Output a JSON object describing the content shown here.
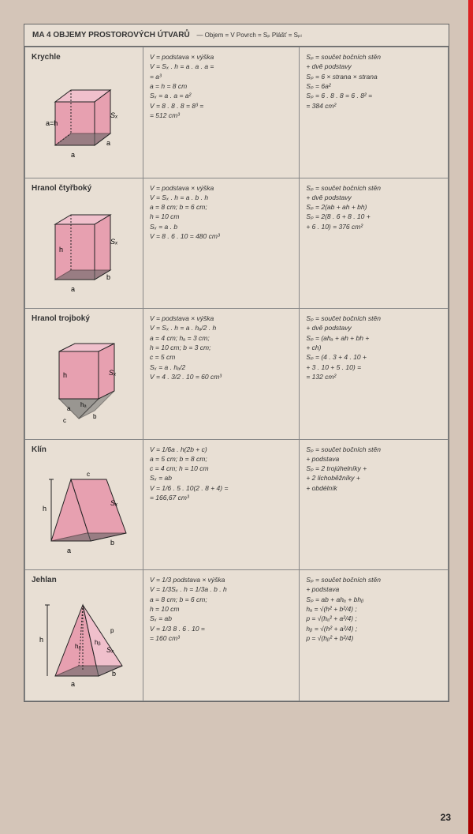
{
  "header": {
    "code": "MA 4",
    "title": "OBJEMY PROSTOROVÝCH ÚTVARŮ",
    "notes": "— Objem = V   Povrch = Sₚ   Plášť = Sₚₗ"
  },
  "pagenum": "23",
  "rows": [
    {
      "title": "Krychle",
      "shape": "cube",
      "formulas": [
        "V = podstava × výška",
        "V = Sₓ . h = a . a . a =",
        "   = a³",
        "a = h = 8 cm",
        "Sₓ = a . a = a²",
        "V = 8 . 8 . 8 = 8³ =",
        "   = 512 cm³"
      ],
      "surface": [
        "Sₚ = součet bočních stěn",
        "     + dvě podstavy",
        "Sₚ = 6 × strana × strana",
        "Sₚ = 6a²",
        "Sₚ = 6 . 8 . 8 = 6 . 8² =",
        "   = 384 cm²"
      ]
    },
    {
      "title": "Hranol čtyřboký",
      "shape": "rect-prism",
      "formulas": [
        "V = podstava × výška",
        "V = Sₓ . h = a . b . h",
        "a = 8 cm; b = 6 cm;",
        "h = 10 cm",
        "Sₓ = a . b",
        "V = 8 . 6 . 10 = 480 cm³"
      ],
      "surface": [
        "Sₚ = součet bočních stěn",
        "     + dvě podstavy",
        "Sₚ = 2(ab + ah + bh)",
        "Sₚ = 2(8 . 6 + 8 . 10 +",
        "   + 6 . 10) = 376 cm²"
      ]
    },
    {
      "title": "Hranol trojboký",
      "shape": "tri-prism",
      "formulas": [
        "V = podstava × výška",
        "V = Sₓ . h = a . hₐ/2 . h",
        "a = 4 cm; hₐ = 3 cm;",
        "h = 10 cm; b = 3 cm;",
        "c = 5 cm",
        "Sₓ = a . hₐ/2",
        "V = 4 . 3/2 . 10 = 60 cm³"
      ],
      "surface": [
        "Sₚ = součet bočních stěn",
        "     + dvě podstavy",
        "Sₚ = (ahₐ + ah + bh +",
        "     + ch)",
        "Sₚ = (4 . 3 + 4 . 10 +",
        "   + 3 . 10 + 5 . 10) =",
        "   = 132 cm²"
      ]
    },
    {
      "title": "Klín",
      "shape": "wedge",
      "formulas": [
        "V = 1/6a . h(2b + c)",
        "a = 5 cm; b = 8 cm;",
        "c = 4 cm; h = 10 cm",
        "Sₓ = ab",
        "V = 1/6 . 5 . 10(2 . 8 + 4) =",
        "   = 166,67 cm³"
      ],
      "surface": [
        "Sₚ = součet bočních stěn",
        "     + podstava",
        "Sₚ = 2 trojúhelníky +",
        "   + 2 lichoběžníky +",
        "   + obdélník"
      ]
    },
    {
      "title": "Jehlan",
      "shape": "pyramid",
      "formulas": [
        "V = 1/3 podstava × výška",
        "V = 1/3Sₓ . h = 1/3a . b . h",
        "a = 8 cm; b = 6 cm;",
        "h = 10 cm",
        "Sₓ = ab",
        "V = 1/3 8 . 6 . 10 =",
        "   = 160 cm³"
      ],
      "surface": [
        "Sₚ = součet bočních stěn",
        "     + podstava",
        "Sₚ = ab + ahₐ + bhᵦ",
        "hₐ = √(h² + b²/4) ;",
        "p = √(hₐ² + a²/4) ;",
        "hᵦ = √(h² + a²/4) ;",
        "p = √(hᵦ² + b²/4)"
      ]
    }
  ],
  "colors": {
    "shape_fill": "#e7a0b0",
    "shape_fill_light": "#f0c0cc",
    "shape_shadow": "#666",
    "shape_line": "#222"
  }
}
